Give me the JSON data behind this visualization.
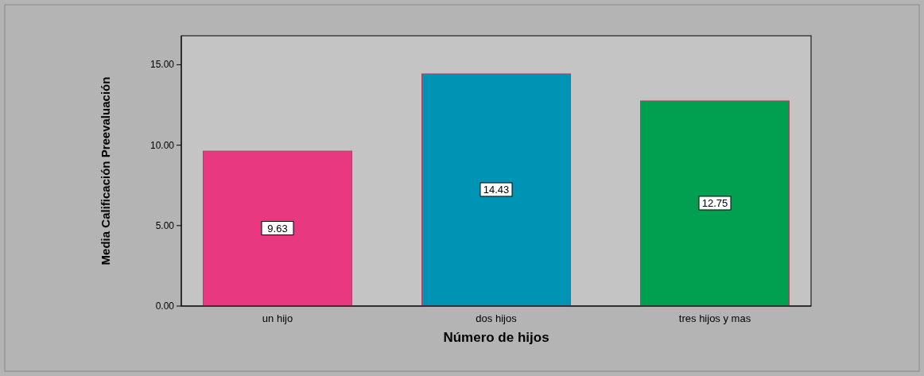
{
  "chart_data": {
    "type": "bar",
    "xlabel": "Número de hijos",
    "ylabel": "Media Calificación Preevaluación",
    "categories": [
      "un hijo",
      "dos hijos",
      "tres hijos y mas"
    ],
    "values": [
      9.63,
      14.43,
      12.75
    ],
    "colors": [
      "#e8387f",
      "#0094b4",
      "#00a050"
    ],
    "ylim": [
      0,
      16.8
    ],
    "yticks": [
      {
        "value": 0,
        "label": "0.00"
      },
      {
        "value": 5,
        "label": "5.00"
      },
      {
        "value": 10,
        "label": "10.00"
      },
      {
        "value": 15,
        "label": "15.00"
      }
    ],
    "data_labels": true
  }
}
